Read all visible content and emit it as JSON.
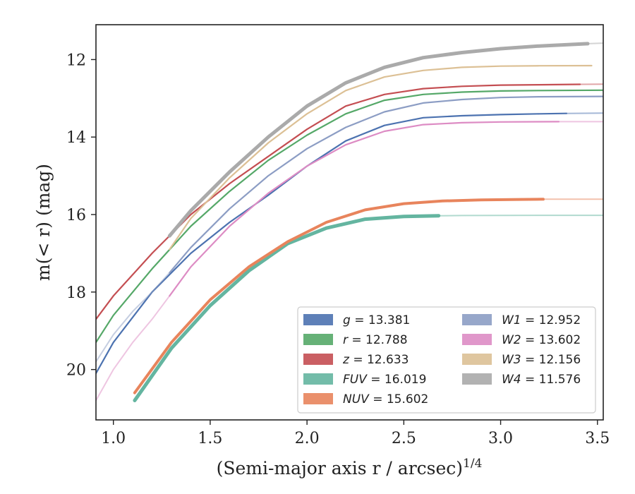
{
  "chart_data": {
    "type": "line",
    "xlabel": "(Semi-major axis r / arcsec)",
    "xlabel_exponent": "1/4",
    "ylabel": "m(< r) (mag)",
    "xlim": [
      0.91,
      3.53
    ],
    "ylim": [
      21.3,
      11.1
    ],
    "y_inverted": true,
    "x_ticks": [
      1.0,
      1.5,
      2.0,
      2.5,
      3.0,
      3.5
    ],
    "x_tick_labels": [
      "1.0",
      "1.5",
      "2.0",
      "2.5",
      "3.0",
      "3.5"
    ],
    "y_ticks": [
      12,
      14,
      16,
      18,
      20
    ],
    "y_tick_labels": [
      "12",
      "14",
      "16",
      "18",
      "20"
    ],
    "grid": false,
    "legend_position": "lower-right",
    "series": [
      {
        "name": "g",
        "label_value": "= 13.381",
        "color": "#4c72b0",
        "x": [
          0.91,
          1.0,
          1.2,
          1.4,
          1.6,
          1.8,
          2.0,
          2.2,
          2.4,
          2.6,
          2.8,
          3.0,
          3.2,
          3.34
        ],
        "y": [
          20.1,
          19.3,
          18.0,
          17.0,
          16.2,
          15.5,
          14.75,
          14.1,
          13.7,
          13.5,
          13.45,
          13.42,
          13.4,
          13.39
        ],
        "faint_x": [
          3.34,
          3.53
        ],
        "faint_y": [
          13.39,
          13.38
        ]
      },
      {
        "name": "r",
        "label_value": "= 12.788",
        "color": "#55a868",
        "x": [
          0.91,
          1.0,
          1.2,
          1.4,
          1.6,
          1.8,
          2.0,
          2.2,
          2.4,
          2.6,
          2.8,
          3.0,
          3.2,
          3.53
        ],
        "y": [
          19.3,
          18.6,
          17.4,
          16.3,
          15.4,
          14.6,
          13.95,
          13.4,
          13.05,
          12.9,
          12.84,
          12.81,
          12.8,
          12.79
        ],
        "faint_x": [],
        "faint_y": []
      },
      {
        "name": "z",
        "label_value": "= 12.633",
        "color": "#c44e52",
        "x": [
          0.91,
          1.0,
          1.2,
          1.4,
          1.6,
          1.8,
          2.0,
          2.2,
          2.4,
          2.6,
          2.8,
          3.0,
          3.2,
          3.41
        ],
        "y": [
          18.7,
          18.1,
          17.0,
          16.0,
          15.2,
          14.5,
          13.8,
          13.2,
          12.9,
          12.75,
          12.69,
          12.66,
          12.65,
          12.64
        ],
        "faint_x": [
          3.41,
          3.53
        ],
        "faint_y": [
          12.64,
          12.633
        ]
      },
      {
        "name": "FUV",
        "label_value": "= 16.019",
        "color": "#64b5a0",
        "x": [
          1.11,
          1.3,
          1.5,
          1.7,
          1.9,
          2.1,
          2.3,
          2.5,
          2.68
        ],
        "y": [
          20.8,
          19.45,
          18.35,
          17.45,
          16.75,
          16.35,
          16.12,
          16.05,
          16.03
        ],
        "faint_x": [
          2.68,
          2.8,
          3.0,
          3.2,
          3.53
        ],
        "faint_y": [
          16.03,
          16.025,
          16.022,
          16.02,
          16.019
        ],
        "width": 5
      },
      {
        "name": "NUV",
        "label_value": "= 15.602",
        "color": "#e8845c",
        "x": [
          1.11,
          1.3,
          1.5,
          1.7,
          1.9,
          2.1,
          2.3,
          2.5,
          2.7,
          2.9,
          3.1,
          3.22
        ],
        "y": [
          20.6,
          19.3,
          18.2,
          17.35,
          16.7,
          16.2,
          15.88,
          15.72,
          15.65,
          15.62,
          15.61,
          15.605
        ],
        "faint_x": [
          3.22,
          3.53
        ],
        "faint_y": [
          15.605,
          15.602
        ],
        "width": 4
      },
      {
        "name": "W1",
        "label_value": "= 12.952",
        "color": "#8c9dc4",
        "x": [
          1.29,
          1.4,
          1.6,
          1.8,
          2.0,
          2.2,
          2.4,
          2.6,
          2.8,
          3.0,
          3.2,
          3.53
        ],
        "y": [
          17.5,
          16.85,
          15.85,
          15.0,
          14.3,
          13.75,
          13.35,
          13.12,
          13.03,
          12.98,
          12.96,
          12.95
        ],
        "faint_x": [
          0.91,
          1.0,
          1.1,
          1.2,
          1.29
        ],
        "faint_y": [
          19.8,
          19.1,
          18.5,
          18.0,
          17.5
        ]
      },
      {
        "name": "W2",
        "label_value": "= 13.602",
        "color": "#dd8cc4",
        "x": [
          1.29,
          1.4,
          1.6,
          1.8,
          2.0,
          2.2,
          2.4,
          2.6,
          2.8,
          3.0,
          3.2,
          3.3
        ],
        "y": [
          18.1,
          17.35,
          16.3,
          15.45,
          14.75,
          14.2,
          13.85,
          13.68,
          13.63,
          13.61,
          13.605,
          13.603
        ],
        "faint_x": [
          0.91,
          1.0,
          1.1,
          1.2,
          1.29,
          1.29,
          3.3,
          3.53
        ],
        "faint_y": [
          20.8,
          20.0,
          19.3,
          18.7,
          18.1,
          null,
          13.603,
          13.602
        ]
      },
      {
        "name": "W3",
        "label_value": "= 12.156",
        "color": "#dcc095",
        "x": [
          1.29,
          1.4,
          1.6,
          1.8,
          2.0,
          2.2,
          2.4,
          2.6,
          2.8,
          3.0,
          3.2,
          3.47
        ],
        "y": [
          16.9,
          16.1,
          15.05,
          14.15,
          13.4,
          12.8,
          12.45,
          12.28,
          12.2,
          12.17,
          12.16,
          12.156
        ],
        "faint_x": [],
        "faint_y": []
      },
      {
        "name": "W4",
        "label_value": "= 11.576",
        "color": "#aaaaaa",
        "x": [
          1.29,
          1.4,
          1.6,
          1.8,
          2.0,
          2.2,
          2.4,
          2.6,
          2.8,
          3.0,
          3.2,
          3.45
        ],
        "y": [
          16.55,
          15.9,
          14.9,
          14.0,
          13.2,
          12.6,
          12.2,
          11.95,
          11.82,
          11.72,
          11.65,
          11.59
        ],
        "faint_x": [
          3.45,
          3.53
        ],
        "faint_y": [
          11.59,
          11.576
        ],
        "width": 5
      }
    ]
  }
}
